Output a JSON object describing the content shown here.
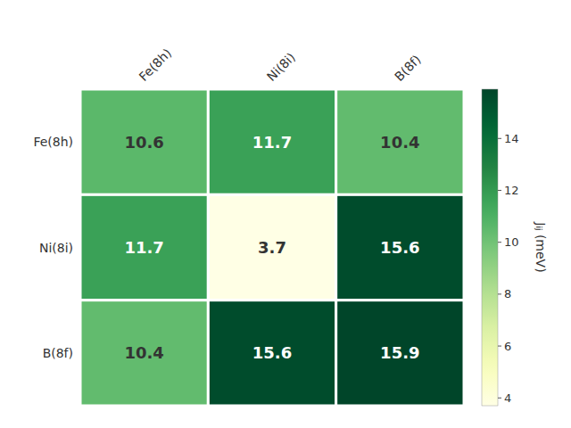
{
  "chart_data": {
    "type": "heatmap",
    "x_categories": [
      "Fe(8h)",
      "Ni(8i)",
      "B(8f)"
    ],
    "y_categories": [
      "Fe(8h)",
      "Ni(8i)",
      "B(8f)"
    ],
    "values": [
      [
        10.6,
        11.7,
        10.4
      ],
      [
        11.7,
        3.7,
        15.6
      ],
      [
        10.4,
        15.6,
        15.9
      ]
    ],
    "color": "YlGn",
    "colorbar_label": "Jᵢⱼ (meV)",
    "colorbar_range": [
      3.7,
      15.9
    ],
    "colorbar_ticks": [
      4,
      6,
      8,
      10,
      12,
      14
    ],
    "data_labels": true
  }
}
